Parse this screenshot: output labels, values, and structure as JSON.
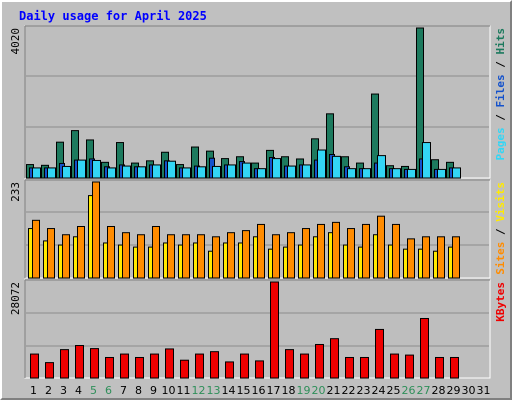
{
  "chart_data": {
    "type": "bar",
    "title": "Daily usage for April 2025",
    "x_ticks": [
      "1",
      "2",
      "3",
      "4",
      "5",
      "6",
      "7",
      "8",
      "9",
      "10",
      "11",
      "12",
      "13",
      "14",
      "15",
      "16",
      "17",
      "18",
      "19",
      "20",
      "21",
      "22",
      "23",
      "24",
      "25",
      "26",
      "27",
      "28",
      "29",
      "30",
      "31"
    ],
    "weekend_days": [
      5,
      6,
      12,
      13,
      19,
      20,
      26,
      27
    ],
    "colors": {
      "background": "#c0c0c0",
      "panel": "#bebebe",
      "grid": "#8c8c8c",
      "title": "#0000ff",
      "axis_text": "#000000",
      "weekend_text": "#2f8f5a",
      "hits": "#1d7a5e",
      "files": "#1452cc",
      "pages": "#33d6f5",
      "visits": "#ff8c00",
      "sites": "#ffea00",
      "kbytes": "#ee0000"
    },
    "panels": [
      {
        "id": "hits-files-pages",
        "ymax_label": "4020",
        "ymax": 4020,
        "legend": [
          {
            "text": "Pages",
            "color": "#33d6f5"
          },
          {
            "text": " / ",
            "color": "#000000"
          },
          {
            "text": "Files",
            "color": "#1452cc"
          },
          {
            "text": " / ",
            "color": "#000000"
          },
          {
            "text": "Hits",
            "color": "#1d7a5e"
          }
        ],
        "series": [
          {
            "name": "Hits",
            "color": "#1d7a5e",
            "values": [
              360,
              340,
              960,
              1270,
              1020,
              420,
              950,
              400,
              460,
              690,
              360,
              830,
              720,
              520,
              570,
              400,
              740,
              570,
              510,
              1050,
              1720,
              570,
              400,
              2250,
              330,
              310,
              4020,
              490,
              420,
              0
            ]
          },
          {
            "name": "Files",
            "color": "#1452cc",
            "values": [
              270,
              270,
              390,
              480,
              510,
              300,
              350,
              300,
              350,
              460,
              270,
              320,
              530,
              350,
              440,
              250,
              550,
              320,
              350,
              480,
              630,
              300,
              250,
              400,
              250,
              230,
              510,
              230,
              270,
              0
            ]
          },
          {
            "name": "Pages",
            "color": "#33d6f5",
            "values": [
              270,
              270,
              310,
              480,
              470,
              270,
              320,
              300,
              350,
              450,
              270,
              300,
              310,
              350,
              400,
              250,
              520,
              320,
              350,
              750,
              580,
              250,
              250,
              600,
              250,
              230,
              950,
              230,
              270,
              0
            ]
          }
        ]
      },
      {
        "id": "visits-sites",
        "ymax_label": "233",
        "ymax": 233,
        "legend": [
          {
            "text": "Sites",
            "color": "#ff8c00"
          },
          {
            "text": " / ",
            "color": "#000000"
          },
          {
            "text": "Visits",
            "color": "#ffea00"
          }
        ],
        "series": [
          {
            "name": "Visits",
            "color": "#ffea00",
            "values": [
              120,
              90,
              80,
              100,
              200,
              85,
              80,
              75,
              75,
              85,
              80,
              85,
              65,
              85,
              85,
              100,
              70,
              75,
              80,
              100,
              110,
              80,
              75,
              105,
              80,
              70,
              70,
              65,
              75,
              0
            ]
          },
          {
            "name": "Sites",
            "color": "#ff8c00",
            "values": [
              140,
              120,
              105,
              125,
              233,
              125,
              110,
              105,
              125,
              105,
              105,
              105,
              100,
              110,
              115,
              130,
              105,
              110,
              120,
              130,
              135,
              120,
              130,
              150,
              130,
              95,
              100,
              100,
              100,
              0
            ]
          }
        ]
      },
      {
        "id": "kbytes",
        "ymax_label": "28072",
        "ymax": 28072,
        "legend": [
          {
            "text": "KBytes",
            "color": "#ee0000"
          }
        ],
        "series": [
          {
            "name": "KBytes",
            "color": "#ee0000",
            "values": [
              7000,
              4500,
              8300,
              9500,
              8600,
              6000,
              7000,
              6000,
              7000,
              8500,
              5200,
              7000,
              7700,
              4700,
              7000,
              5000,
              28072,
              8300,
              7000,
              9800,
              11500,
              6000,
              6000,
              14200,
              7000,
              6700,
              17400,
              6000,
              6000,
              0
            ]
          }
        ]
      }
    ]
  }
}
